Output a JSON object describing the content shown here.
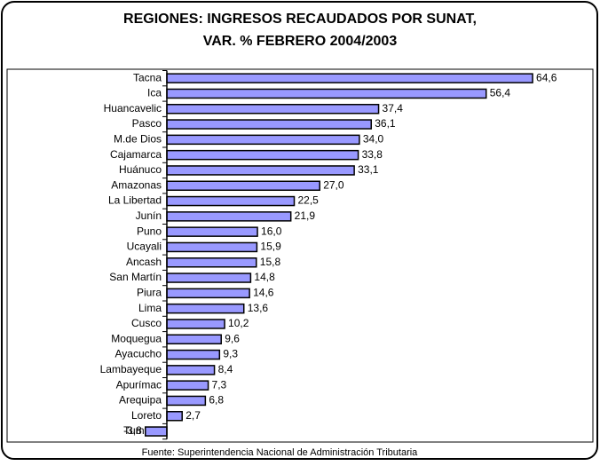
{
  "chart_data": {
    "type": "bar",
    "orientation": "horizontal",
    "title": [
      "REGIONES: INGRESOS RECAUDADOS POR SUNAT,",
      "VAR. % FEBRERO 2004/2003"
    ],
    "categories": [
      "Tacna",
      "Ica",
      "Huancavelic",
      "Pasco",
      "M.de Dios",
      "Cajamarca",
      "Huánuco",
      "Amazonas",
      "La Libertad",
      "Junín",
      "Puno",
      "Ucayali",
      "Ancash",
      "San Martín",
      "Piura",
      "Lima",
      "Cusco",
      "Moquegua",
      "Ayacucho",
      "Lambayeque",
      "Apurímac",
      "Arequipa",
      "Loreto",
      "Tumbes"
    ],
    "values": [
      64.6,
      56.4,
      37.4,
      36.1,
      34.0,
      33.8,
      33.1,
      27.0,
      22.5,
      21.9,
      16.0,
      15.9,
      15.8,
      14.8,
      14.6,
      13.6,
      10.2,
      9.6,
      9.3,
      8.4,
      7.3,
      6.8,
      2.7,
      -3.8
    ],
    "value_labels": [
      "64,6",
      "56,4",
      "37,4",
      "36,1",
      "34,0",
      "33,8",
      "33,1",
      "27,0",
      "22,5",
      "21,9",
      "16,0",
      "15,9",
      "15,8",
      "14,8",
      "14,6",
      "13,6",
      "10,2",
      "9,6",
      "9,3",
      "8,4",
      "7,3",
      "6,8",
      "2,7",
      "-3,8"
    ],
    "color": "#9999ff",
    "xlim": [
      -5,
      70
    ],
    "source": "Fuente: Superintendencia Nacional de Administración Tributaria"
  }
}
